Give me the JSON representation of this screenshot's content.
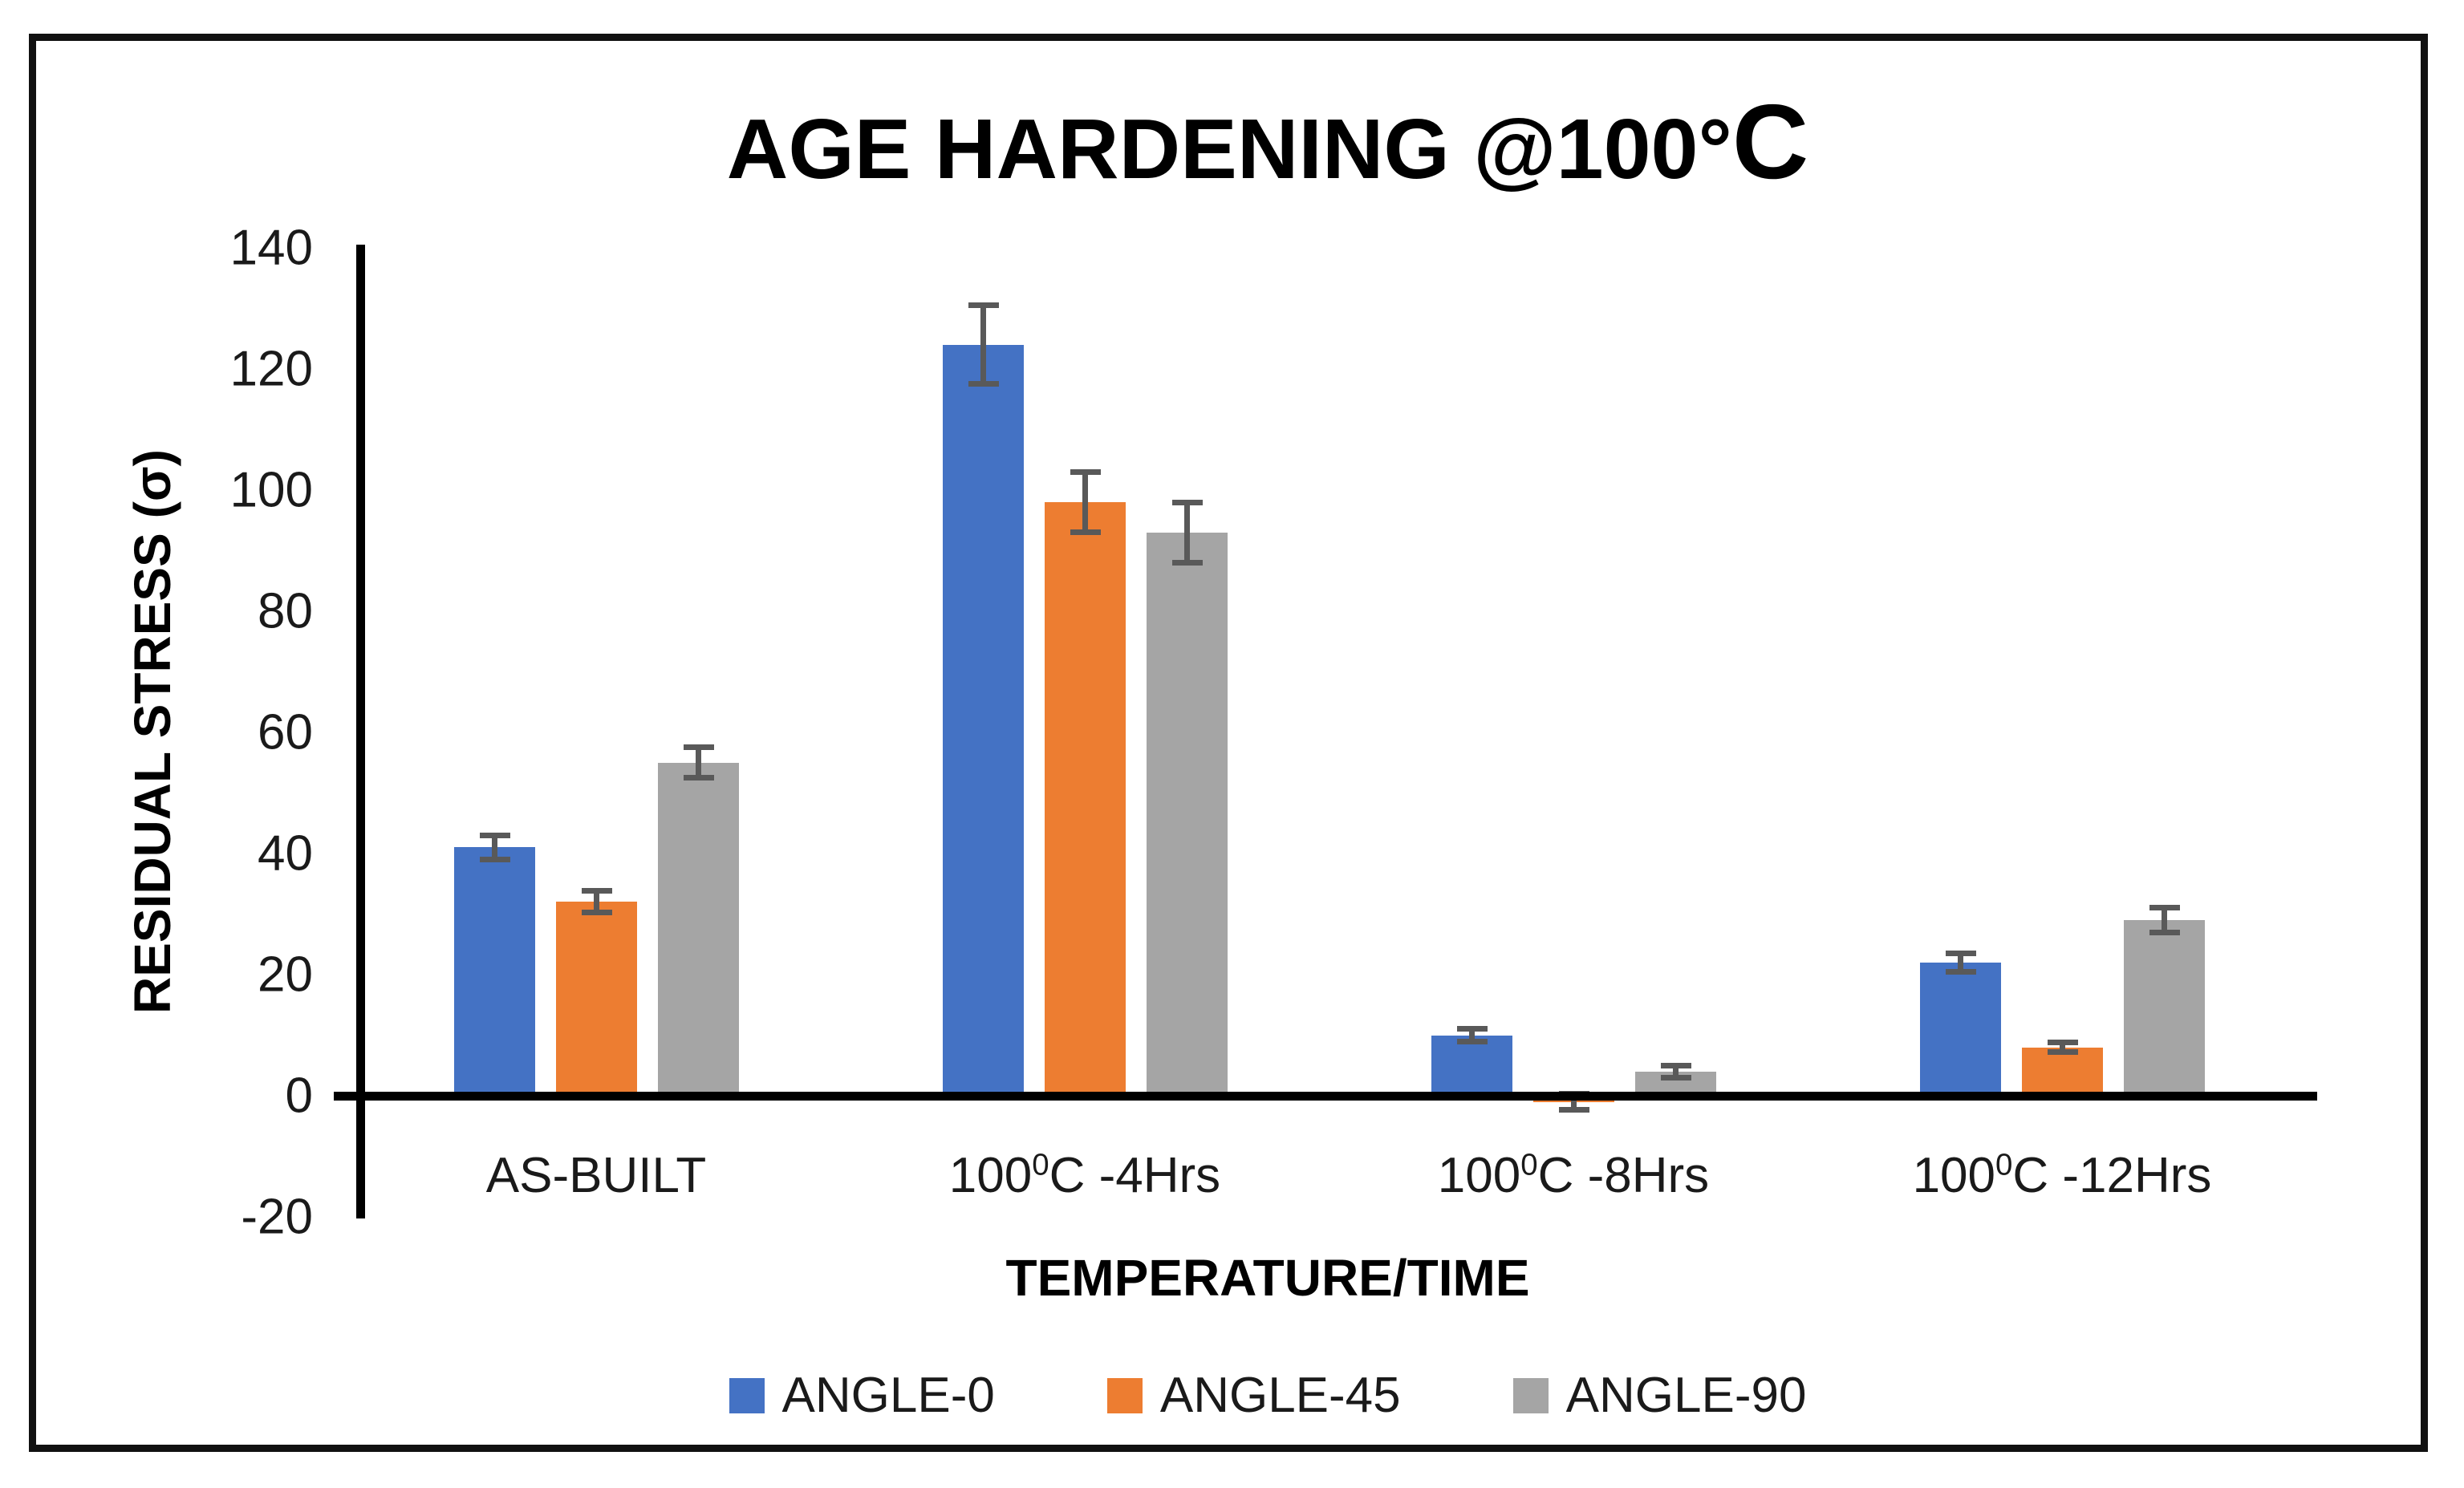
{
  "title": {
    "prefix": "AGE HARDENING @100°",
    "suffix": "C"
  },
  "chart_data": {
    "type": "bar",
    "title": "AGE HARDENING @100°C",
    "categories": [
      "AS-BUILT",
      "100⁰C -4Hrs",
      "100⁰C -8Hrs",
      "100⁰C -12Hrs"
    ],
    "series": [
      {
        "name": "ANGLE-0",
        "color": "#4472C4",
        "values": [
          41,
          124,
          10,
          22
        ],
        "errors": [
          2,
          6.5,
          1,
          1.5
        ]
      },
      {
        "name": "ANGLE-45",
        "color": "#ED7D31",
        "values": [
          32,
          98,
          -1,
          8
        ],
        "errors": [
          1.8,
          5,
          1.3,
          0.8
        ]
      },
      {
        "name": "ANGLE-90",
        "color": "#A5A5A5",
        "values": [
          55,
          93,
          4,
          29
        ],
        "errors": [
          2.5,
          5,
          1,
          2
        ]
      }
    ],
    "xlabel": "TEMPERATURE/TIME",
    "ylabel": "RESIDUAL STRESS (σ)",
    "yticks": [
      140,
      120,
      100,
      80,
      60,
      40,
      20,
      0,
      -20
    ],
    "ylim": [
      -20,
      140
    ],
    "grid": false,
    "legend_position": "bottom",
    "error_bar_color": "#595959",
    "axis_color": "#000000"
  }
}
